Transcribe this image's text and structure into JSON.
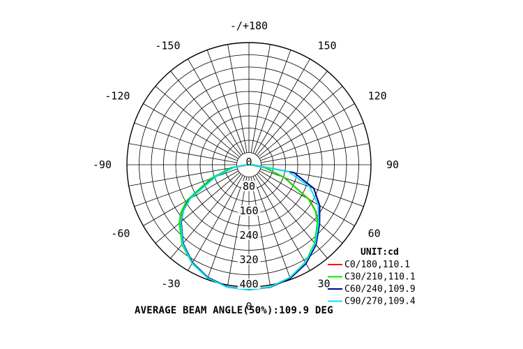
{
  "chart_data": {
    "type": "polar",
    "angle_labels": [
      {
        "angle": 180,
        "text": "-/+180"
      },
      {
        "angle": 150,
        "text": "150"
      },
      {
        "angle": -150,
        "text": "-150"
      },
      {
        "angle": 120,
        "text": "120"
      },
      {
        "angle": -120,
        "text": "-120"
      },
      {
        "angle": 90,
        "text": "90"
      },
      {
        "angle": -90,
        "text": "-90"
      },
      {
        "angle": 60,
        "text": "60"
      },
      {
        "angle": -60,
        "text": "-60"
      },
      {
        "angle": 30,
        "text": "30"
      },
      {
        "angle": -30,
        "text": "-30"
      },
      {
        "angle": 0,
        "text": "0"
      }
    ],
    "radial_ticks": [
      {
        "value": 0,
        "text": "0"
      },
      {
        "value": 80,
        "text": "80"
      },
      {
        "value": 160,
        "text": "160"
      },
      {
        "value": 240,
        "text": "240"
      },
      {
        "value": 320,
        "text": "320"
      },
      {
        "value": 400,
        "text": "400"
      }
    ],
    "r_max": 400,
    "ring_count": 10,
    "spoke_step_deg": 10,
    "unit_label": "UNIT:cd",
    "footer": "AVERAGE BEAM ANGLE(50%):109.9 DEG",
    "series": [
      {
        "name": "C0/180,110.1",
        "color": "#ff0000",
        "points": [
          [
            -90,
            4
          ],
          [
            -80,
            58
          ],
          [
            -70,
            128
          ],
          [
            -60,
            232
          ],
          [
            -55,
            270
          ],
          [
            -50,
            296
          ],
          [
            -40,
            340
          ],
          [
            -30,
            372
          ],
          [
            -20,
            394
          ],
          [
            -10,
            407
          ],
          [
            0,
            410
          ],
          [
            10,
            407
          ],
          [
            20,
            394
          ],
          [
            30,
            370
          ],
          [
            40,
            336
          ],
          [
            50,
            294
          ],
          [
            55,
            268
          ],
          [
            60,
            228
          ],
          [
            70,
            124
          ],
          [
            80,
            54
          ],
          [
            90,
            4
          ]
        ]
      },
      {
        "name": "C30/210,110.1",
        "color": "#00ee00",
        "points": [
          [
            -90,
            6
          ],
          [
            -80,
            62
          ],
          [
            -70,
            134
          ],
          [
            -60,
            236
          ],
          [
            -55,
            272
          ],
          [
            -50,
            298
          ],
          [
            -40,
            341
          ],
          [
            -30,
            373
          ],
          [
            -20,
            395
          ],
          [
            -10,
            407
          ],
          [
            0,
            409
          ],
          [
            10,
            406
          ],
          [
            20,
            393
          ],
          [
            30,
            369
          ],
          [
            40,
            335
          ],
          [
            50,
            293
          ],
          [
            55,
            266
          ],
          [
            60,
            226
          ],
          [
            70,
            122
          ],
          [
            80,
            52
          ],
          [
            90,
            4
          ]
        ]
      },
      {
        "name": "C60/240,109.9",
        "color": "#00008b",
        "points": [
          [
            -90,
            3
          ],
          [
            -80,
            52
          ],
          [
            -70,
            120
          ],
          [
            -60,
            224
          ],
          [
            -55,
            262
          ],
          [
            -50,
            290
          ],
          [
            -40,
            336
          ],
          [
            -30,
            370
          ],
          [
            -20,
            393
          ],
          [
            -10,
            406
          ],
          [
            0,
            409
          ],
          [
            10,
            407
          ],
          [
            20,
            396
          ],
          [
            30,
            374
          ],
          [
            40,
            342
          ],
          [
            50,
            302
          ],
          [
            60,
            268
          ],
          [
            70,
            226
          ],
          [
            80,
            150
          ],
          [
            90,
            10
          ]
        ]
      },
      {
        "name": "C90/270,109.4",
        "color": "#00e5ee",
        "points": [
          [
            -90,
            3
          ],
          [
            -80,
            50
          ],
          [
            -70,
            118
          ],
          [
            -60,
            222
          ],
          [
            -55,
            262
          ],
          [
            -50,
            292
          ],
          [
            -40,
            338
          ],
          [
            -30,
            372
          ],
          [
            -20,
            395
          ],
          [
            -10,
            407
          ],
          [
            0,
            410
          ],
          [
            10,
            406
          ],
          [
            20,
            393
          ],
          [
            30,
            370
          ],
          [
            40,
            338
          ],
          [
            50,
            298
          ],
          [
            60,
            262
          ],
          [
            70,
            212
          ],
          [
            80,
            132
          ],
          [
            90,
            8
          ]
        ]
      }
    ]
  }
}
